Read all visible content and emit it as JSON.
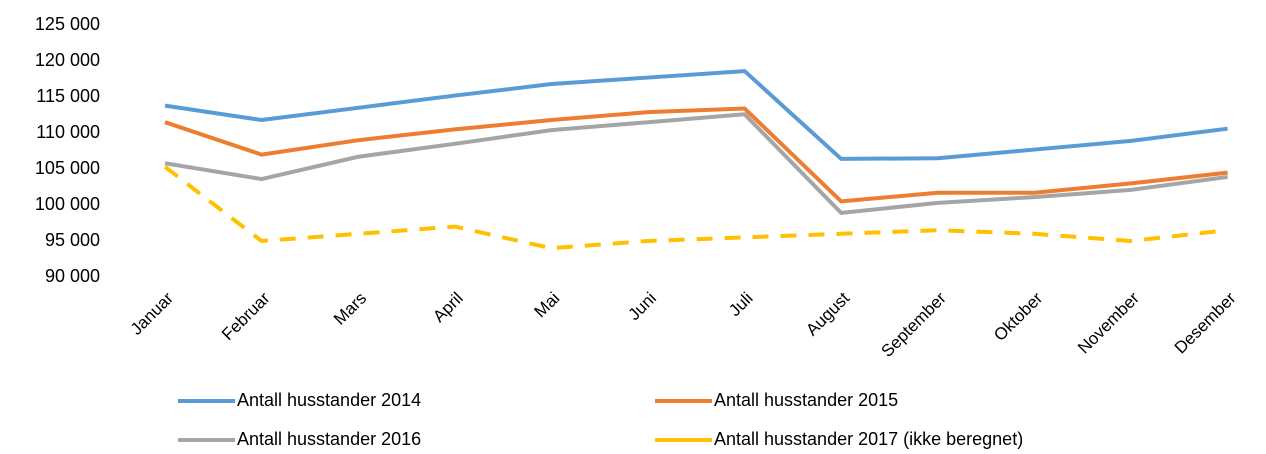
{
  "chart_data": {
    "type": "line",
    "categories": [
      "Januar",
      "Februar",
      "Mars",
      "April",
      "Mai",
      "Juni",
      "Juli",
      "August",
      "September",
      "Oktober",
      "November",
      "Desember"
    ],
    "series": [
      {
        "name": "Antall husstander 2014",
        "color": "#5b9bd5",
        "dashed": false,
        "values": [
          113800,
          111800,
          113500,
          115200,
          116800,
          117700,
          118600,
          106400,
          106500,
          107700,
          108900,
          110600
        ]
      },
      {
        "name": "Antall husstander 2015",
        "color": "#ed7d31",
        "dashed": false,
        "values": [
          111500,
          107000,
          109000,
          110500,
          111800,
          112900,
          113400,
          100500,
          101700,
          101700,
          103000,
          104500
        ]
      },
      {
        "name": "Antall husstander 2016",
        "color": "#a5a5a5",
        "dashed": false,
        "values": [
          105800,
          103600,
          106700,
          108500,
          110400,
          111500,
          112600,
          98900,
          100300,
          101100,
          102100,
          103900
        ]
      },
      {
        "name": "Antall husstander 2017 (ikke beregnet)",
        "color": "#ffc000",
        "dashed": true,
        "values": [
          105300,
          95000,
          96000,
          97000,
          94000,
          95000,
          95500,
          96000,
          96500,
          96000,
          95000,
          96500
        ]
      }
    ],
    "ylim": [
      90000,
      125000
    ],
    "yticks": [
      {
        "value": 90000,
        "label": "90 000"
      },
      {
        "value": 95000,
        "label": "95 000"
      },
      {
        "value": 100000,
        "label": "100 000"
      },
      {
        "value": 105000,
        "label": "105 000"
      },
      {
        "value": 110000,
        "label": "110 000"
      },
      {
        "value": 115000,
        "label": "115 000"
      },
      {
        "value": 120000,
        "label": "120 000"
      },
      {
        "value": 125000,
        "label": "125 000"
      }
    ],
    "grid": false,
    "legend": "bottom"
  }
}
